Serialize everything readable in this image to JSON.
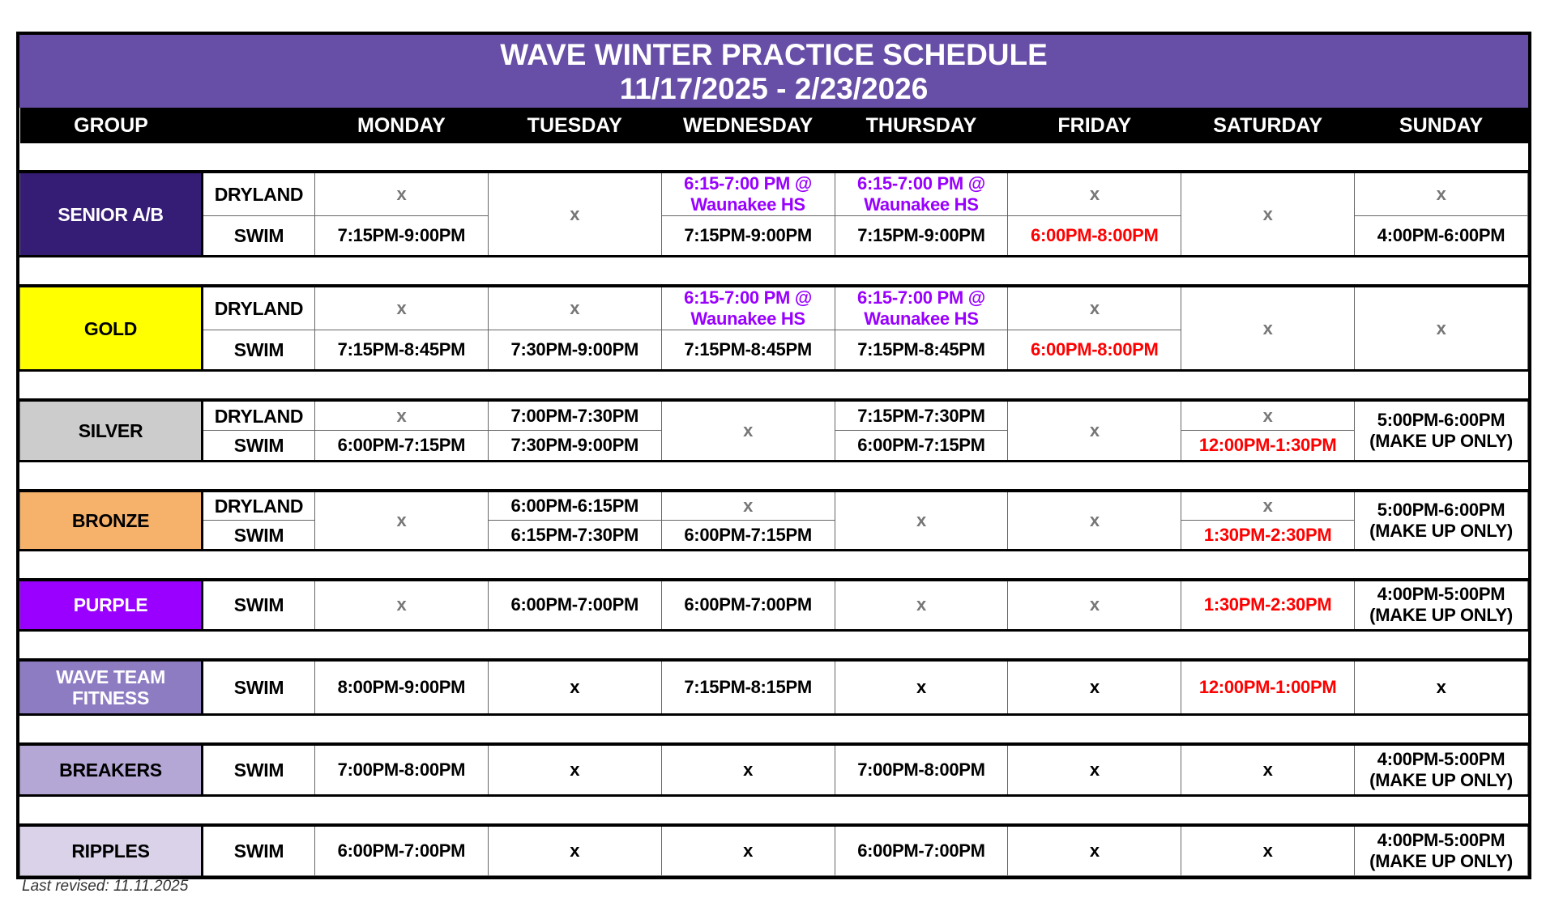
{
  "title": {
    "line1": "WAVE WINTER PRACTICE SCHEDULE",
    "line2": "11/17/2025 - 2/23/2026"
  },
  "header": {
    "group": "GROUP",
    "days": [
      "MONDAY",
      "TUESDAY",
      "WEDNESDAY",
      "THURSDAY",
      "FRIDAY",
      "SATURDAY",
      "SUNDAY"
    ]
  },
  "colors": {
    "title_bg": "#674ea7",
    "waunakee_text": "#9900ff",
    "weekend_text": "#ff0000",
    "x_gray": "#777777"
  },
  "groups": [
    {
      "name": "SENIOR A/B",
      "bg": "#351c75",
      "fg": "#ffffff",
      "types": [
        "DRYLAND",
        "SWIM"
      ],
      "height": 100,
      "days": [
        [
          {
            "t": "x",
            "c": "gray"
          },
          {
            "t": "7:15PM-9:00PM",
            "c": "black"
          }
        ],
        {
          "t": "x",
          "c": "gray"
        },
        [
          {
            "t": "6:15-7:00 PM @\nWaunakee HS",
            "c": "purple"
          },
          {
            "t": "7:15PM-9:00PM",
            "c": "black"
          }
        ],
        [
          {
            "t": "6:15-7:00 PM @\nWaunakee HS",
            "c": "purple"
          },
          {
            "t": "7:15PM-9:00PM",
            "c": "black"
          }
        ],
        [
          {
            "t": "x",
            "c": "gray"
          },
          {
            "t": "6:00PM-8:00PM",
            "c": "red"
          }
        ],
        {
          "t": "x",
          "c": "gray"
        },
        [
          {
            "t": "x",
            "c": "gray"
          },
          {
            "t": "4:00PM-6:00PM",
            "c": "black"
          }
        ]
      ]
    },
    {
      "name": "GOLD",
      "bg": "#ffff00",
      "fg": "#000000",
      "types": [
        "DRYLAND",
        "SWIM"
      ],
      "height": 100,
      "days": [
        [
          {
            "t": "x",
            "c": "gray"
          },
          {
            "t": "7:15PM-8:45PM",
            "c": "black"
          }
        ],
        [
          {
            "t": "x",
            "c": "gray"
          },
          {
            "t": "7:30PM-9:00PM",
            "c": "black"
          }
        ],
        [
          {
            "t": "6:15-7:00 PM @\nWaunakee HS",
            "c": "purple"
          },
          {
            "t": "7:15PM-8:45PM",
            "c": "black"
          }
        ],
        [
          {
            "t": "6:15-7:00 PM @\nWaunakee HS",
            "c": "purple"
          },
          {
            "t": "7:15PM-8:45PM",
            "c": "black"
          }
        ],
        [
          {
            "t": "x",
            "c": "gray"
          },
          {
            "t": "6:00PM-8:00PM",
            "c": "red"
          }
        ],
        {
          "t": "x",
          "c": "gray"
        },
        {
          "t": "x",
          "c": "gray"
        }
      ]
    },
    {
      "name": "SILVER",
      "bg": "#cccccc",
      "fg": "#000000",
      "types": [
        "DRYLAND",
        "SWIM"
      ],
      "height": 75,
      "days": [
        [
          {
            "t": "x",
            "c": "gray"
          },
          {
            "t": "6:00PM-7:15PM",
            "c": "black"
          }
        ],
        [
          {
            "t": "7:00PM-7:30PM",
            "c": "black"
          },
          {
            "t": "7:30PM-9:00PM",
            "c": "black"
          }
        ],
        {
          "t": "x",
          "c": "gray"
        },
        [
          {
            "t": "7:15PM-7:30PM",
            "c": "black"
          },
          {
            "t": "6:00PM-7:15PM",
            "c": "black"
          }
        ],
        {
          "t": "x",
          "c": "gray"
        },
        [
          {
            "t": "x",
            "c": "gray"
          },
          {
            "t": "12:00PM-1:30PM",
            "c": "red"
          }
        ],
        {
          "t": "5:00PM-6:00PM\n(MAKE UP ONLY)",
          "c": "black"
        }
      ]
    },
    {
      "name": "BRONZE",
      "bg": "#f6b26b",
      "fg": "#000000",
      "types": [
        "DRYLAND",
        "SWIM"
      ],
      "height": 74,
      "days": [
        {
          "t": "x",
          "c": "gray"
        },
        [
          {
            "t": "6:00PM-6:15PM",
            "c": "black"
          },
          {
            "t": "6:15PM-7:30PM",
            "c": "black"
          }
        ],
        [
          {
            "t": "x",
            "c": "gray"
          },
          {
            "t": "6:00PM-7:15PM",
            "c": "black"
          }
        ],
        {
          "t": "x",
          "c": "gray"
        },
        {
          "t": "x",
          "c": "gray"
        },
        [
          {
            "t": "x",
            "c": "gray"
          },
          {
            "t": "1:30PM-2:30PM",
            "c": "red"
          }
        ],
        {
          "t": "5:00PM-6:00PM\n(MAKE UP ONLY)",
          "c": "black"
        }
      ]
    },
    {
      "name": "PURPLE",
      "bg": "#9900ff",
      "fg": "#ffffff",
      "types": [
        "SWIM"
      ],
      "height": 62,
      "days": [
        {
          "t": "x",
          "c": "gray"
        },
        {
          "t": "6:00PM-7:00PM",
          "c": "black"
        },
        {
          "t": "6:00PM-7:00PM",
          "c": "black"
        },
        {
          "t": "x",
          "c": "gray"
        },
        {
          "t": "x",
          "c": "gray"
        },
        {
          "t": "1:30PM-2:30PM",
          "c": "red"
        },
        {
          "t": "4:00PM-5:00PM\n(MAKE UP ONLY)",
          "c": "black"
        }
      ]
    },
    {
      "name": "WAVE TEAM\nFITNESS",
      "bg": "#8e7cc3",
      "fg": "#ffffff",
      "types": [
        "SWIM"
      ],
      "height": 68,
      "days": [
        {
          "t": "8:00PM-9:00PM",
          "c": "black"
        },
        {
          "t": "x",
          "c": "black"
        },
        {
          "t": "7:15PM-8:15PM",
          "c": "black"
        },
        {
          "t": "x",
          "c": "black"
        },
        {
          "t": "x",
          "c": "black"
        },
        {
          "t": "12:00PM-1:00PM",
          "c": "red"
        },
        {
          "t": "x",
          "c": "black"
        }
      ]
    },
    {
      "name": "BREAKERS",
      "bg": "#b4a7d6",
      "fg": "#000000",
      "types": [
        "SWIM"
      ],
      "height": 63,
      "days": [
        {
          "t": "7:00PM-8:00PM",
          "c": "black"
        },
        {
          "t": "x",
          "c": "black"
        },
        {
          "t": "x",
          "c": "black"
        },
        {
          "t": "7:00PM-8:00PM",
          "c": "black"
        },
        {
          "t": "x",
          "c": "black"
        },
        {
          "t": "x",
          "c": "black"
        },
        {
          "t": "4:00PM-5:00PM\n(MAKE UP ONLY)",
          "c": "black"
        }
      ]
    },
    {
      "name": "RIPPLES",
      "bg": "#d9d2e9",
      "fg": "#000000",
      "types": [
        "SWIM"
      ],
      "height": 63,
      "days": [
        {
          "t": "6:00PM-7:00PM",
          "c": "black"
        },
        {
          "t": "x",
          "c": "black"
        },
        {
          "t": "x",
          "c": "black"
        },
        {
          "t": "6:00PM-7:00PM",
          "c": "black"
        },
        {
          "t": "x",
          "c": "black"
        },
        {
          "t": "x",
          "c": "black"
        },
        {
          "t": "4:00PM-5:00PM\n(MAKE UP ONLY)",
          "c": "black"
        }
      ]
    }
  ],
  "footer": "Last revised: 11.11.2025"
}
